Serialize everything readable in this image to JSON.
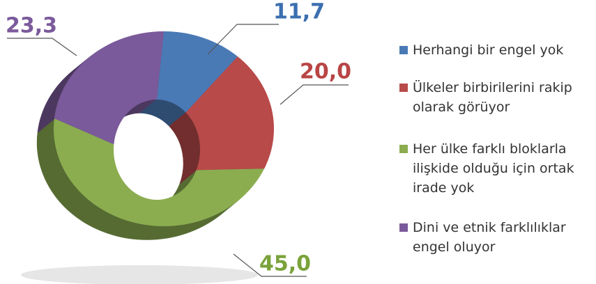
{
  "chart_data": {
    "type": "donut",
    "categories": [
      "Herhangi bir engel yok",
      "Ülkeler birbirilerini rakip olarak görüyor",
      "Her ülke farklı bloklarla ilişkide olduğu için ortak irade yok",
      "Dini ve etnik farklılıklar engel oluyor"
    ],
    "values": [
      11.7,
      20.0,
      45.0,
      23.3
    ],
    "value_labels": [
      "11,7",
      "20,0",
      "45,0",
      "23,3"
    ],
    "colors": [
      "#4a7ab5",
      "#b84a4a",
      "#8bad50",
      "#7a5a9a"
    ],
    "legend": "right"
  }
}
